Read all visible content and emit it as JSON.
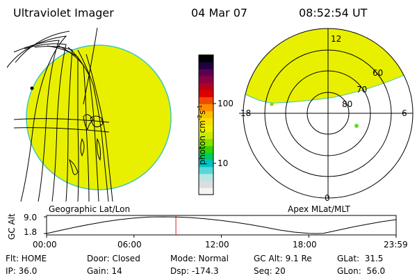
{
  "header": {
    "instrument": "Ultraviolet Imager",
    "date": "04 Mar 07",
    "time": "08:52:54 UT"
  },
  "geo_view": {
    "label": "Geographic Lat/Lon",
    "fill_color": "#e8f000",
    "edge_color": "#3cc7c0"
  },
  "polar_view": {
    "label": "Apex MLat/MLT",
    "mlt_labels": [
      "12",
      "18",
      "6",
      "0"
    ],
    "lat_labels": [
      "60",
      "70",
      "80"
    ],
    "fill_color": "#e8f000"
  },
  "colorbar": {
    "unit_label": "photon cm",
    "unit_exp1": "-2",
    "unit_mid": "s",
    "unit_exp2": "-1",
    "ticks": [
      "100",
      "10"
    ],
    "colors": [
      "#f4f4f4",
      "#dddddd",
      "#b6e6e6",
      "#57d7d7",
      "#00c4c0",
      "#00c864",
      "#33d400",
      "#88e000",
      "#c8ec00",
      "#eef000",
      "#f7e000",
      "#ffbf00",
      "#ff8c00",
      "#f04a00",
      "#dc0000",
      "#b4001e",
      "#8b0044",
      "#5a0052",
      "#200040",
      "#000000"
    ]
  },
  "chart_data": {
    "type": "line",
    "title": "",
    "ylabel": "GC Alt",
    "xlabel": "",
    "x_ticks": [
      "00:00",
      "06:00",
      "12:00",
      "18:00",
      "23:59"
    ],
    "y_ticks": [
      "9.0",
      "1.8"
    ],
    "ylim": [
      1.8,
      9.0
    ],
    "xlim_hours": [
      0,
      24
    ],
    "series": [
      {
        "x": [
          0,
          1,
          2,
          3,
          4,
          5,
          6,
          7,
          8,
          9,
          10,
          11,
          12,
          13,
          14,
          15,
          16,
          17,
          18,
          18.5,
          19,
          20,
          21,
          22,
          23,
          24
        ],
        "y": [
          1.8,
          3.2,
          4.6,
          5.8,
          6.9,
          7.8,
          8.5,
          8.9,
          9.0,
          8.9,
          8.6,
          8.1,
          7.4,
          6.6,
          5.6,
          4.5,
          3.3,
          2.4,
          1.85,
          1.8,
          1.9,
          3.2,
          4.6,
          5.8,
          6.9,
          7.8
        ]
      }
    ],
    "marker_time": "08:52:54"
  },
  "footer": {
    "row1": [
      "Flt: HOME",
      "Door: Closed",
      "Mode: Normal",
      "GC Alt: 9.1 Re",
      "GLat:  31.5"
    ],
    "row2": [
      "IP: 36.0",
      "Gain: 14",
      "Dsp: -174.3",
      "Seq: 20",
      "GLon:  56.0"
    ]
  }
}
